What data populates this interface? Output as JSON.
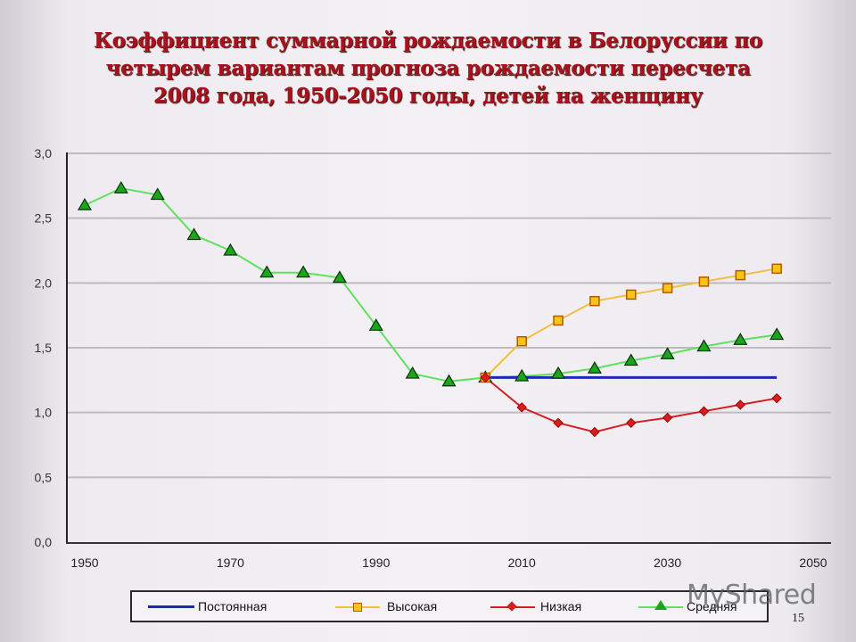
{
  "slide": {
    "title_lines": [
      "Коэффициент суммарной рождаемости в Белоруссии по",
      "четырем вариантам прогноза рождаемости пересчета",
      "2008 года, 1950-2050 годы, детей на женщину"
    ],
    "page_number": "15",
    "watermark": "MyShared"
  },
  "legend": {
    "items": [
      {
        "label": "Постоянная",
        "color": "#1a2bb8",
        "marker": "none"
      },
      {
        "label": "Высокая",
        "color": "#f2c040",
        "marker": "square"
      },
      {
        "label": "Низкая",
        "color": "#d42020",
        "marker": "diamond"
      },
      {
        "label": "Средняя",
        "color": "#5fe05f",
        "marker": "triangle"
      }
    ]
  },
  "chart_data": {
    "type": "line",
    "title": "Коэффициент суммарной рождаемости в Белоруссии по четырем вариантам прогноза рождаемости пересчета 2008 года, 1950-2050 годы, детей на женщину",
    "xlabel": "",
    "ylabel": "",
    "xlim": [
      1950,
      2050
    ],
    "ylim": [
      0.0,
      3.0
    ],
    "x_ticks": [
      "1950",
      "1970",
      "1990",
      "2010",
      "2030",
      "2050"
    ],
    "y_ticks": [
      "0,0",
      "0,5",
      "1,0",
      "1,5",
      "2,0",
      "2,5",
      "3,0"
    ],
    "grid": true,
    "legend_position": "bottom",
    "series": [
      {
        "name": "Постоянная",
        "color": "#1a2bb8",
        "marker": "none",
        "x": [
          2005,
          2045
        ],
        "values": [
          1.27,
          1.27
        ]
      },
      {
        "name": "Высокая",
        "color": "#f2c040",
        "marker": "square",
        "x": [
          2005,
          2010,
          2015,
          2020,
          2025,
          2030,
          2035,
          2040,
          2045
        ],
        "values": [
          1.27,
          1.55,
          1.71,
          1.86,
          1.91,
          1.96,
          2.01,
          2.06,
          2.11
        ]
      },
      {
        "name": "Низкая",
        "color": "#d42020",
        "marker": "diamond",
        "x": [
          2005,
          2010,
          2015,
          2020,
          2025,
          2030,
          2035,
          2040,
          2045
        ],
        "values": [
          1.27,
          1.04,
          0.92,
          0.85,
          0.92,
          0.96,
          1.01,
          1.06,
          1.11
        ]
      },
      {
        "name": "Средняя",
        "color": "#5fe05f",
        "marker": "triangle",
        "x": [
          1950,
          1955,
          1960,
          1965,
          1970,
          1975,
          1980,
          1985,
          1990,
          1995,
          2000,
          2005,
          2010,
          2015,
          2020,
          2025,
          2030,
          2035,
          2040,
          2045
        ],
        "values": [
          2.6,
          2.73,
          2.68,
          2.37,
          2.25,
          2.08,
          2.08,
          2.04,
          1.67,
          1.3,
          1.24,
          1.27,
          1.28,
          1.3,
          1.34,
          1.4,
          1.45,
          1.51,
          1.56,
          1.6
        ]
      }
    ]
  }
}
